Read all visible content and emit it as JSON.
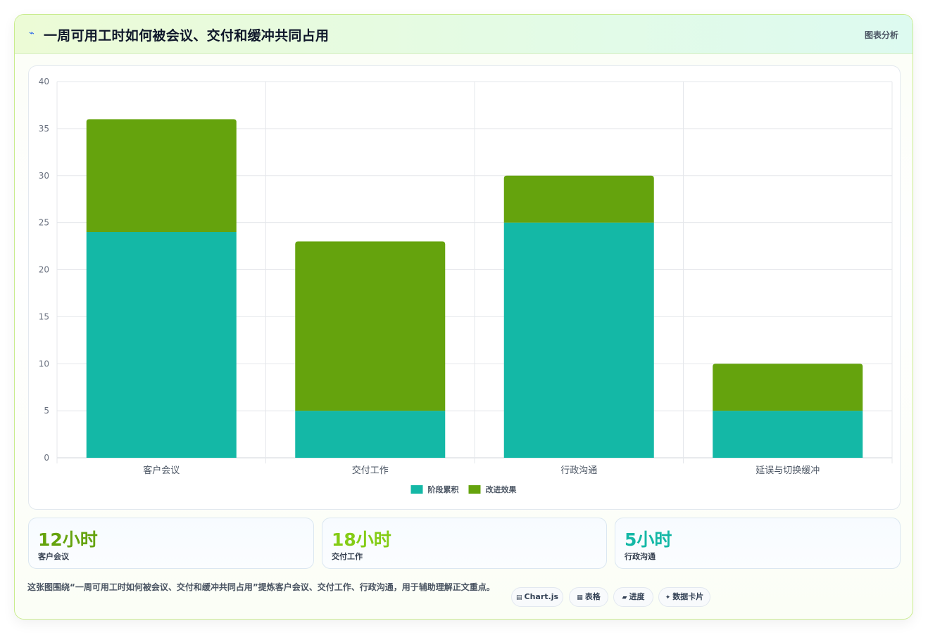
{
  "header": {
    "title_icon": "⌁",
    "title": "一周可用工时如何被会议、交付和缓冲共同占用",
    "tag": "图表分析"
  },
  "chart_data": {
    "type": "bar",
    "stacked": true,
    "categories": [
      "客户会议",
      "交付工作",
      "行政沟通",
      "延误与切换缓冲"
    ],
    "series": [
      {
        "name": "阶段累积",
        "values": [
          24,
          5,
          25,
          5
        ],
        "color": "#14b8a6"
      },
      {
        "name": "改进效果",
        "values": [
          12,
          18,
          5,
          5
        ],
        "color": "#65a30d"
      }
    ],
    "ylim": [
      0,
      40
    ],
    "yticks": [
      0,
      5,
      10,
      15,
      20,
      25,
      30,
      35,
      40
    ],
    "grid": true,
    "legend": "bottom"
  },
  "stats": [
    {
      "value": "12小时",
      "label": "客户会议",
      "color": "#65a30d"
    },
    {
      "value": "18小时",
      "label": "交付工作",
      "color": "#84cc16"
    },
    {
      "value": "5小时",
      "label": "行政沟通",
      "color": "#14b8a6"
    }
  ],
  "summary": "这张图围绕“一周可用工时如何被会议、交付和缓冲共同占用”提炼客户会议、交付工作、行政沟通，用于辅助理解正文重点。",
  "pills": [
    {
      "icon": "▤",
      "label": "Chart.js"
    },
    {
      "icon": "▦",
      "label": "表格"
    },
    {
      "icon": "▰",
      "label": "进度"
    },
    {
      "icon": "✦",
      "label": "数据卡片"
    }
  ]
}
